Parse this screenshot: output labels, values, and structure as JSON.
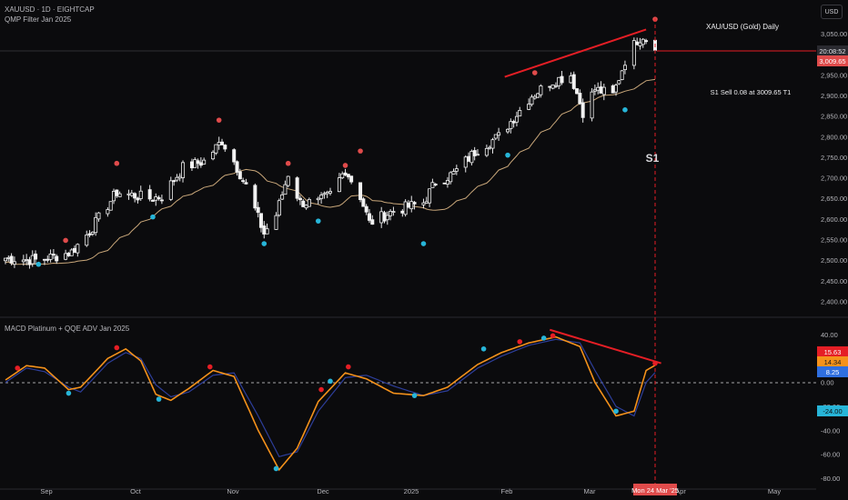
{
  "header": {
    "symbol_line": "XAUUSD · 1D · EIGHTCAP",
    "indicator1": "QMP Filter Jan 2025",
    "indicator2": "MACD Platinum + QQE ADV Jan 2025",
    "currency_button": "USD"
  },
  "annotations": {
    "title": "XAU/USD (Gold) Daily",
    "trade_note": "S1 Sell 0.08 at 3009.65 T1",
    "marker_label": "S1"
  },
  "price_tags": {
    "time_left": "20:08:52",
    "price": "3,009.65",
    "macd_red": "15.63",
    "macd_orange": "14.34",
    "macd_blue": "8.25",
    "macd_cyan": "-24.00"
  },
  "x_axis": {
    "labels": [
      "Sep",
      "Oct",
      "Nov",
      "Dec",
      "2025",
      "Feb",
      "Mar",
      "Apr",
      "May"
    ],
    "cursor_date": "Mon 24 Mar '25"
  },
  "colors": {
    "up_candle": "#f2f2f2",
    "down_candle": "#f2f2f2",
    "ma_line": "#c9a77a",
    "macd_line": "#f5921b",
    "signal_line": "#2d3e9a",
    "red": "#e51e25",
    "cyan": "#27b5d8",
    "price_tag": "#e04b4b"
  },
  "chart_data": [
    {
      "type": "candlestick",
      "title": "XAU/USD (Gold) Daily",
      "xlabel": "",
      "ylabel": "",
      "ylim": [
        2400,
        3100
      ],
      "y_ticks": [
        "3,050.00",
        "3,000.00",
        "2,950.00",
        "2,900.00",
        "2,850.00",
        "2,800.00",
        "2,750.00",
        "2,700.00",
        "2,650.00",
        "2,600.00",
        "2,550.00",
        "2,500.00",
        "2,450.00",
        "2,400.00"
      ],
      "y_tick_values": [
        3050,
        3000,
        2950,
        2900,
        2850,
        2800,
        2750,
        2700,
        2650,
        2600,
        2550,
        2500,
        2450,
        2400
      ],
      "close_anchors": [
        [
          "Aug 20",
          2505
        ],
        [
          "Aug 30",
          2500
        ],
        [
          "Sep 6",
          2510
        ],
        [
          "Sep 11",
          2520
        ],
        [
          "Sep 17",
          2570
        ],
        [
          "Sep 26",
          2665
        ],
        [
          "Oct 7",
          2650
        ],
        [
          "Oct 11",
          2655
        ],
        [
          "Oct 18",
          2725
        ],
        [
          "Oct 25",
          2740
        ],
        [
          "Oct 31",
          2790
        ],
        [
          "Nov 4",
          2740
        ],
        [
          "Nov 8",
          2680
        ],
        [
          "Nov 14",
          2565
        ],
        [
          "Nov 18",
          2610
        ],
        [
          "Nov 22",
          2710
        ],
        [
          "Nov 26",
          2640
        ],
        [
          "Dec 2",
          2640
        ],
        [
          "Dec 6",
          2660
        ],
        [
          "Dec 11",
          2720
        ],
        [
          "Dec 16",
          2655
        ],
        [
          "Dec 19",
          2590
        ],
        [
          "Dec 27",
          2620
        ],
        [
          "Jan 6",
          2640
        ],
        [
          "Jan 10",
          2690
        ],
        [
          "Jan 16",
          2710
        ],
        [
          "Jan 24",
          2770
        ],
        [
          "Jan 31",
          2800
        ],
        [
          "Feb 6",
          2855
        ],
        [
          "Feb 11",
          2900
        ],
        [
          "Feb 18",
          2935
        ],
        [
          "Feb 24",
          2950
        ],
        [
          "Feb 28",
          2860
        ],
        [
          "Mar 4",
          2915
        ],
        [
          "Mar 10",
          2900
        ],
        [
          "Mar 14",
          2985
        ],
        [
          "Mar 18",
          3035
        ],
        [
          "Mar 20",
          3045
        ],
        [
          "Mar 24",
          3010
        ]
      ],
      "ma_series": {
        "name": "",
        "start": 2475,
        "end": 2955
      },
      "signals_sell": [
        [
          "Sep 9",
          2548
        ],
        [
          "Sep 26",
          2735
        ],
        [
          "Oct 30",
          2840
        ],
        [
          "Nov 22",
          2735
        ],
        [
          "Dec 11",
          2730
        ],
        [
          "Dec 16",
          2765
        ],
        [
          "Feb 12",
          2955
        ],
        [
          "Mar 24",
          3085
        ]
      ],
      "signals_buy": [
        [
          "Aug 31",
          2490
        ],
        [
          "Oct 8",
          2605
        ],
        [
          "Nov 14",
          2540
        ],
        [
          "Dec 2",
          2595
        ],
        [
          "Jan 6",
          2540
        ],
        [
          "Feb 3",
          2755
        ],
        [
          "Mar 14",
          2865
        ]
      ],
      "trendline": [
        [
          "Feb 2",
          2945
        ],
        [
          "Mar 21",
          3060
        ]
      ],
      "last_price": 3009.65
    },
    {
      "type": "line",
      "title": "MACD Platinum + QQE ADV Jan 2025",
      "ylim": [
        -80,
        40
      ],
      "y_ticks": [
        "40.00",
        "20.00",
        "0.00",
        "-20.00",
        "-40.00",
        "-60.00",
        "-80.00"
      ],
      "y_tick_values": [
        40,
        20,
        0,
        -20,
        -40,
        -60,
        -80
      ],
      "series": [
        {
          "name": "",
          "anchors": [
            [
              "Aug 20",
              2
            ],
            [
              "Aug 27",
              14
            ],
            [
              "Sep 2",
              12
            ],
            [
              "Sep 10",
              -6
            ],
            [
              "Sep 14",
              -4
            ],
            [
              "Sep 23",
              20
            ],
            [
              "Sep 29",
              28
            ],
            [
              "Oct 4",
              18
            ],
            [
              "Oct 9",
              -10
            ],
            [
              "Oct 14",
              -15
            ],
            [
              "Oct 20",
              -5
            ],
            [
              "Oct 28",
              10
            ],
            [
              "Nov 4",
              5
            ],
            [
              "Nov 12",
              -40
            ],
            [
              "Nov 19",
              -73
            ],
            [
              "Nov 25",
              -55
            ],
            [
              "Dec 2",
              -16
            ],
            [
              "Dec 11",
              8
            ],
            [
              "Dec 18",
              3
            ],
            [
              "Dec 27",
              -9
            ],
            [
              "Jan 6",
              -11
            ],
            [
              "Jan 14",
              -4
            ],
            [
              "Jan 24",
              15
            ],
            [
              "Feb 1",
              25
            ],
            [
              "Feb 10",
              33
            ],
            [
              "Feb 19",
              38
            ],
            [
              "Feb 27",
              30
            ],
            [
              "Mar 4",
              0
            ],
            [
              "Mar 11",
              -28
            ],
            [
              "Mar 17",
              -24
            ],
            [
              "Mar 21",
              10
            ],
            [
              "Mar 24",
              14.34
            ]
          ]
        },
        {
          "name": "",
          "anchors": [
            [
              "Aug 20",
              0
            ],
            [
              "Aug 27",
              12
            ],
            [
              "Sep 2",
              9
            ],
            [
              "Sep 10",
              -4
            ],
            [
              "Sep 14",
              -8
            ],
            [
              "Sep 23",
              16
            ],
            [
              "Sep 29",
              25
            ],
            [
              "Oct 4",
              20
            ],
            [
              "Oct 9",
              -2
            ],
            [
              "Oct 14",
              -12
            ],
            [
              "Oct 20",
              -8
            ],
            [
              "Oct 28",
              6
            ],
            [
              "Nov 4",
              8
            ],
            [
              "Nov 12",
              -28
            ],
            [
              "Nov 19",
              -62
            ],
            [
              "Nov 25",
              -58
            ],
            [
              "Dec 2",
              -24
            ],
            [
              "Dec 11",
              4
            ],
            [
              "Dec 18",
              6
            ],
            [
              "Dec 27",
              -3
            ],
            [
              "Jan 6",
              -11
            ],
            [
              "Jan 14",
              -7
            ],
            [
              "Jan 24",
              12
            ],
            [
              "Feb 1",
              22
            ],
            [
              "Feb 10",
              31
            ],
            [
              "Feb 19",
              36
            ],
            [
              "Feb 27",
              33
            ],
            [
              "Mar 4",
              10
            ],
            [
              "Mar 11",
              -20
            ],
            [
              "Mar 17",
              -28
            ],
            [
              "Mar 21",
              0
            ],
            [
              "Mar 24",
              8.25
            ]
          ]
        }
      ],
      "dots_red": [
        [
          "Aug 24",
          12
        ],
        [
          "Sep 26",
          29
        ],
        [
          "Oct 27",
          13
        ],
        [
          "Dec 3",
          -6
        ],
        [
          "Dec 12",
          13
        ],
        [
          "Feb 7",
          34
        ],
        [
          "Feb 18",
          39
        ],
        [
          "Mar 24",
          16
        ]
      ],
      "dots_cyan": [
        [
          "Sep 10",
          -9
        ],
        [
          "Oct 10",
          -14
        ],
        [
          "Nov 18",
          -72
        ],
        [
          "Dec 6",
          1
        ],
        [
          "Jan 3",
          -11
        ],
        [
          "Jan 26",
          28
        ],
        [
          "Feb 15",
          37
        ],
        [
          "Mar 11",
          -24
        ]
      ],
      "trendline": [
        [
          "Feb 17",
          44
        ],
        [
          "Mar 26",
          16
        ]
      ]
    }
  ]
}
